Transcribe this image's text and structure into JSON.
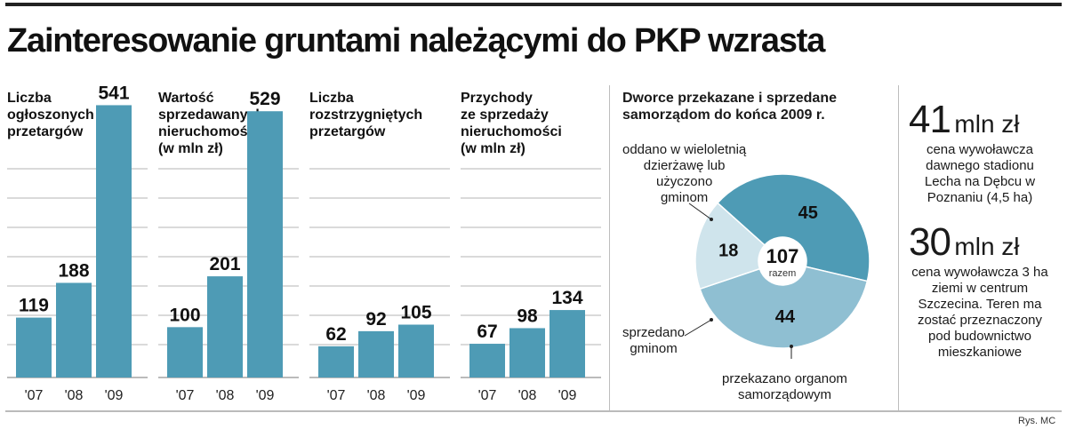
{
  "title": "Zainteresowanie gruntami należącymi do PKP wzrasta",
  "chart_data": [
    {
      "type": "bar",
      "title": "Liczba\nogłoszonych\nprzetargów",
      "categories": [
        "'07",
        "'08",
        "'09"
      ],
      "values": [
        119,
        188,
        541
      ],
      "ylim": [
        0,
        600
      ],
      "grid": true,
      "color": "#4e9bb5"
    },
    {
      "type": "bar",
      "title": "Wartość\nsprzedawanych\nnieruchomości\n(w mln zł)",
      "categories": [
        "'07",
        "'08",
        "'09"
      ],
      "values": [
        100,
        201,
        529
      ],
      "ylim": [
        0,
        600
      ],
      "grid": true,
      "color": "#4e9bb5"
    },
    {
      "type": "bar",
      "title": "Liczba\nrozstrzygniętych\nprzetargów",
      "categories": [
        "'07",
        "'08",
        "'09"
      ],
      "values": [
        62,
        92,
        105
      ],
      "ylim": [
        0,
        600
      ],
      "grid": true,
      "color": "#4e9bb5"
    },
    {
      "type": "bar",
      "title": "Przychody\nze sprzedaży\nnieruchomości\n(w mln zł)",
      "categories": [
        "'07",
        "'08",
        "'09"
      ],
      "values": [
        67,
        98,
        134
      ],
      "ylim": [
        0,
        600
      ],
      "grid": true,
      "color": "#4e9bb5"
    },
    {
      "type": "pie",
      "title": "Dworce przekazane i sprzedane\nsamorządom do końca 2009 r.",
      "center_value": "107",
      "center_label": "razem",
      "slices": [
        {
          "label": "oddano w wieloletnią\ndzierżawę lub\nużyczono\ngminom",
          "value": 45,
          "color": "#4e9bb5"
        },
        {
          "label": "przekazano organom\nsamorządowym",
          "value": 44,
          "color": "#8fbfd2"
        },
        {
          "label": "sprzedano\ngminom",
          "value": 18,
          "color": "#cfe4ec"
        }
      ]
    }
  ],
  "facts": [
    {
      "value": "41",
      "unit": "mln zł",
      "text": "cena wywoławcza dawnego stadionu Lecha na Dębcu w Poznaniu (4,5 ha)"
    },
    {
      "value": "30",
      "unit": "mln zł",
      "text": "cena wywoławcza 3 ha ziemi w centrum Szczecina. Teren ma zostać przeznaczony pod budownictwo mieszkaniowe"
    }
  ],
  "credit": "Rys. MC"
}
